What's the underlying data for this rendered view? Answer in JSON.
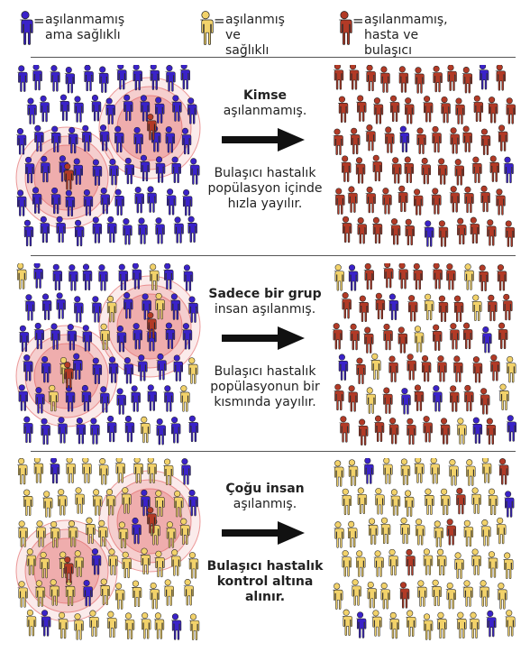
{
  "colors": {
    "unvaccinated_healthy": "#3a22c9",
    "vaccinated_healthy": "#f2d26a",
    "sick": "#b23a26",
    "divider": "#555555",
    "arrow": "#111111",
    "halo": "#e05a5a"
  },
  "legend": [
    {
      "figure": "unvaccinated_healthy",
      "equals": "=",
      "text": "aşılanmamış\nama sağlıklı"
    },
    {
      "figure": "vaccinated_healthy",
      "equals": "=",
      "text": "aşılanmış\nve sağlıklı"
    },
    {
      "figure": "sick",
      "equals": "=",
      "text": "aşılanmamış,\nhasta ve bulaşıcı"
    }
  ],
  "panels": [
    {
      "heading": [
        "Kimse",
        "aşılanmamış."
      ],
      "caption": [
        "Bulaşıcı hastalık",
        "popülasyon içinde",
        "hızla yayılır."
      ],
      "caption_bold": false,
      "before_vaccinated_share": 0.0,
      "after_sick_share": 0.92,
      "after_vaccinated_share": 0.0
    },
    {
      "heading": [
        "Sadece bir grup",
        "insan aşılanmış."
      ],
      "caption": [
        "Bulaşıcı hastalık",
        "popülasyonun bir",
        "kısmında yayılır."
      ],
      "caption_bold": false,
      "before_vaccinated_share": 0.15,
      "after_sick_share": 0.72,
      "after_vaccinated_share": 0.15
    },
    {
      "heading": [
        "Çoğu insan",
        "aşılanmış."
      ],
      "caption": [
        "Bulaşıcı hastalık",
        "kontrol altına",
        "alınır."
      ],
      "caption_bold": true,
      "before_vaccinated_share": 0.88,
      "after_sick_share": 0.05,
      "after_vaccinated_share": 0.88
    }
  ]
}
